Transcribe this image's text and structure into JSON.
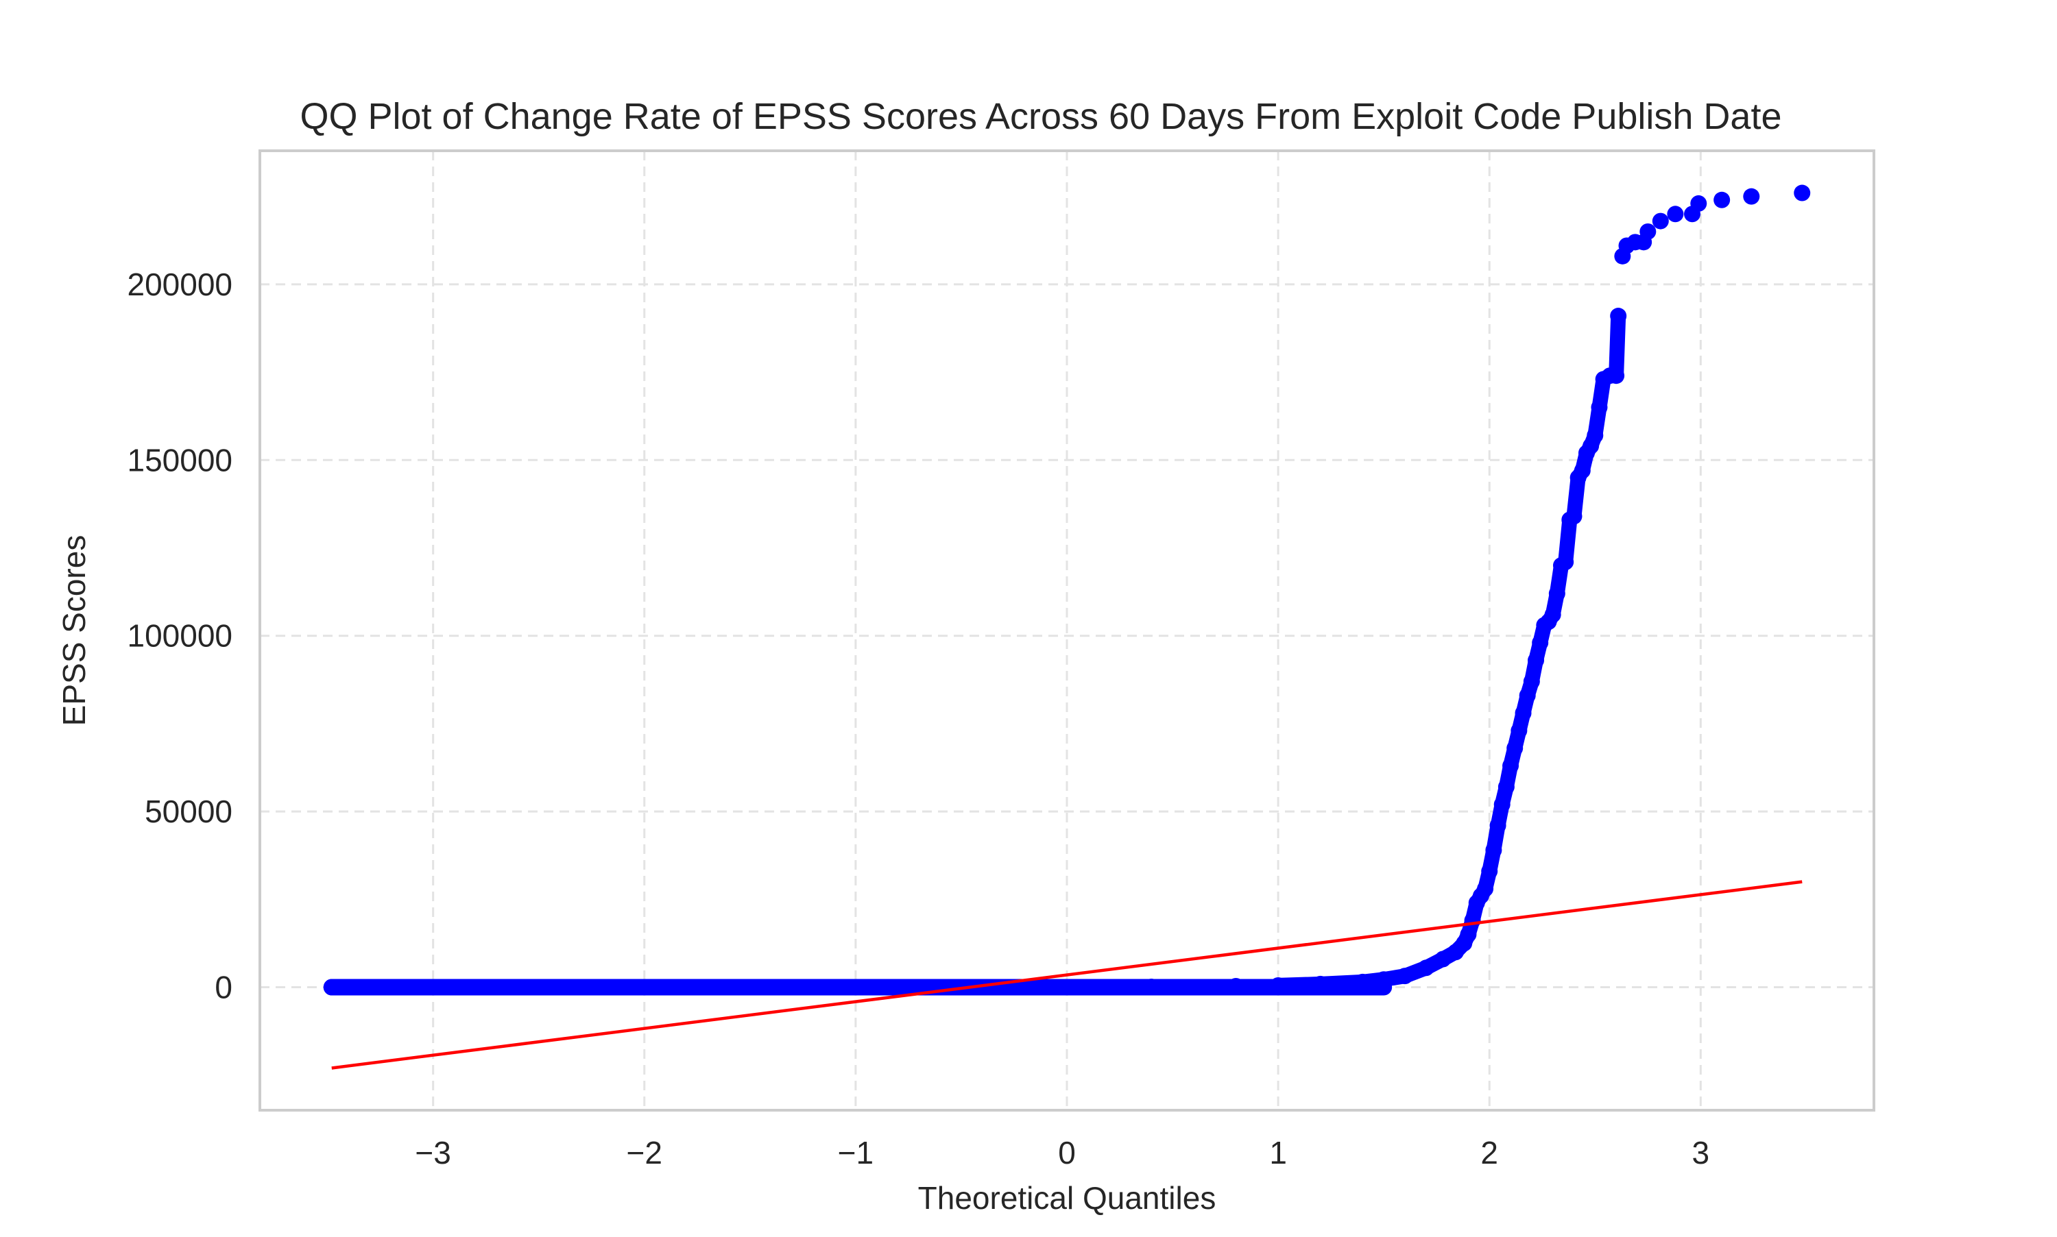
{
  "chart_data": {
    "type": "scatter",
    "title": "QQ Plot of Change Rate of EPSS Scores Across 60 Days From Exploit Code Publish Date",
    "xlabel": "Theoretical Quantiles",
    "ylabel": "EPSS Scores",
    "xlim": [
      -3.82,
      3.82
    ],
    "ylim": [
      -35000,
      238000
    ],
    "x_ticks": [
      -3,
      -2,
      -1,
      0,
      1,
      2,
      3
    ],
    "x_tick_labels": [
      "−3",
      "−2",
      "−1",
      "0",
      "1",
      "2",
      "3"
    ],
    "y_ticks": [
      0,
      50000,
      100000,
      150000,
      200000
    ],
    "y_tick_labels": [
      "0",
      "50000",
      "100000",
      "150000",
      "200000"
    ],
    "grid": true,
    "legend": "none",
    "series": [
      {
        "role": "sample quantiles",
        "color": "#0000ff",
        "points": [
          [
            -3.48,
            0
          ],
          [
            -3.24,
            0
          ],
          [
            -3.1,
            0
          ],
          [
            -2.99,
            0
          ],
          [
            -2.9,
            0
          ],
          [
            -2.84,
            0
          ],
          [
            -2.78,
            0
          ],
          [
            -2.72,
            0
          ],
          [
            -2.66,
            0
          ],
          [
            -2.6,
            0
          ],
          [
            -2.5,
            0
          ],
          [
            -2.3,
            0
          ],
          [
            -2.0,
            0
          ],
          [
            -1.6,
            0
          ],
          [
            -1.2,
            0
          ],
          [
            -0.8,
            0
          ],
          [
            -0.4,
            0
          ],
          [
            0.0,
            0
          ],
          [
            0.4,
            100
          ],
          [
            0.8,
            300
          ],
          [
            1.0,
            500
          ],
          [
            1.2,
            900
          ],
          [
            1.4,
            1500
          ],
          [
            1.5,
            2200
          ],
          [
            1.6,
            3200
          ],
          [
            1.7,
            5500
          ],
          [
            1.78,
            8000
          ],
          [
            1.84,
            10000
          ],
          [
            1.88,
            12500
          ],
          [
            1.9,
            15000
          ],
          [
            1.92,
            19000
          ],
          [
            1.94,
            24000
          ],
          [
            1.96,
            26000
          ],
          [
            1.98,
            28000
          ],
          [
            2.0,
            33000
          ],
          [
            2.02,
            39000
          ],
          [
            2.04,
            46000
          ],
          [
            2.06,
            52000
          ],
          [
            2.08,
            57000
          ],
          [
            2.1,
            63000
          ],
          [
            2.12,
            68000
          ],
          [
            2.14,
            73000
          ],
          [
            2.16,
            78000
          ],
          [
            2.18,
            83000
          ],
          [
            2.2,
            87000
          ],
          [
            2.22,
            93000
          ],
          [
            2.24,
            98000
          ],
          [
            2.26,
            103000
          ],
          [
            2.28,
            104000
          ],
          [
            2.3,
            106000
          ],
          [
            2.32,
            112000
          ],
          [
            2.34,
            120000
          ],
          [
            2.36,
            121000
          ],
          [
            2.38,
            133000
          ],
          [
            2.4,
            134000
          ],
          [
            2.42,
            145000
          ],
          [
            2.44,
            147000
          ],
          [
            2.46,
            152000
          ],
          [
            2.48,
            154000
          ],
          [
            2.5,
            157000
          ],
          [
            2.52,
            165000
          ],
          [
            2.54,
            173000
          ],
          [
            2.57,
            174000
          ],
          [
            2.6,
            174000
          ],
          [
            2.61,
            191000
          ],
          [
            2.63,
            208000
          ],
          [
            2.65,
            211000
          ],
          [
            2.69,
            212000
          ],
          [
            2.73,
            212000
          ],
          [
            2.75,
            215000
          ],
          [
            2.81,
            218000
          ],
          [
            2.88,
            220000
          ],
          [
            2.96,
            220000
          ],
          [
            2.99,
            223000
          ],
          [
            3.1,
            224000
          ],
          [
            3.24,
            225000
          ],
          [
            3.48,
            226000
          ]
        ]
      },
      {
        "role": "reference line",
        "color": "#ff0000",
        "points": [
          [
            -3.48,
            -23000
          ],
          [
            3.48,
            30000
          ]
        ]
      }
    ]
  }
}
